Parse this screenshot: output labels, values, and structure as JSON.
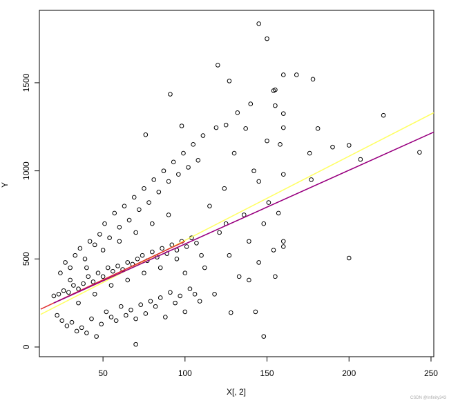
{
  "chart_data": {
    "type": "scatter",
    "xlabel": "X[, 2]",
    "ylabel": "Y",
    "watermark": "CSDN @Infinity343",
    "xlim": [
      11.2,
      251.7
    ],
    "ylim": [
      -55,
      1911
    ],
    "xticks": [
      50,
      100,
      150,
      200,
      250
    ],
    "yticks": [
      0,
      500,
      1000,
      1500
    ],
    "points": {
      "color": "#000000",
      "x": [
        145,
        150,
        120,
        160,
        168,
        178,
        127,
        91,
        155,
        154,
        140,
        155,
        132,
        160,
        221,
        125,
        119,
        137,
        160,
        181,
        76,
        98,
        190,
        200,
        176,
        207,
        243,
        150,
        158,
        177,
        200,
        148,
        70,
        143,
        128,
        160,
        160,
        155,
        139,
        160,
        145,
        125,
        20,
        23,
        26,
        29,
        32,
        35,
        38,
        41,
        44,
        47,
        50,
        53,
        56,
        59,
        62,
        65,
        68,
        71,
        74,
        77,
        80,
        83,
        86,
        89,
        92,
        95,
        98,
        101,
        104,
        107,
        22,
        25,
        28,
        31,
        34,
        37,
        40,
        43,
        46,
        49,
        52,
        55,
        58,
        61,
        64,
        67,
        70,
        73,
        76,
        79,
        82,
        85,
        88,
        91,
        94,
        97,
        100,
        103,
        106,
        109,
        24,
        27,
        30,
        33,
        36,
        39,
        42,
        45,
        48,
        51,
        54,
        57,
        60,
        63,
        66,
        69,
        72,
        75,
        78,
        81,
        84,
        87,
        90,
        93,
        96,
        99,
        102,
        105,
        108,
        111,
        112,
        115,
        118,
        121,
        124,
        127,
        130,
        133,
        136,
        139,
        142,
        145,
        148,
        151,
        154,
        157,
        35,
        45,
        55,
        65,
        75,
        85,
        95,
        60,
        70,
        80,
        90,
        50,
        40,
        30,
        100,
        110
      ],
      "y": [
        1835,
        1750,
        1600,
        1545,
        1545,
        1520,
        1510,
        1435,
        1460,
        1455,
        1380,
        1370,
        1330,
        1325,
        1315,
        1260,
        1245,
        1240,
        1245,
        1240,
        1205,
        1255,
        1135,
        1145,
        1100,
        1065,
        1105,
        1170,
        1150,
        950,
        505,
        60,
        15,
        200,
        195,
        600,
        570,
        400,
        380,
        980,
        940,
        700,
        290,
        300,
        320,
        310,
        350,
        330,
        360,
        400,
        370,
        420,
        400,
        450,
        430,
        460,
        440,
        480,
        470,
        500,
        520,
        490,
        540,
        510,
        560,
        530,
        580,
        550,
        600,
        570,
        620,
        590,
        180,
        150,
        120,
        140,
        90,
        110,
        80,
        160,
        60,
        130,
        200,
        170,
        150,
        230,
        180,
        210,
        160,
        240,
        190,
        260,
        230,
        280,
        170,
        310,
        250,
        290,
        200,
        330,
        300,
        260,
        420,
        480,
        450,
        520,
        560,
        500,
        600,
        580,
        640,
        700,
        620,
        760,
        680,
        800,
        720,
        850,
        780,
        900,
        820,
        950,
        880,
        1000,
        940,
        1050,
        980,
        1100,
        1020,
        1150,
        1060,
        1200,
        450,
        800,
        300,
        650,
        900,
        520,
        1100,
        400,
        750,
        600,
        1000,
        480,
        700,
        820,
        550,
        760,
        250,
        300,
        350,
        380,
        420,
        450,
        500,
        600,
        650,
        700,
        750,
        550,
        450,
        380,
        420,
        520
      ]
    },
    "lines": [
      {
        "color": "#ffff66",
        "x": [
          12,
          251.7
        ],
        "y": [
          185,
          1330
        ]
      },
      {
        "color": "#e03030",
        "x": [
          12,
          100
        ],
        "y": [
          215,
          600
        ]
      },
      {
        "color": "#990080",
        "x": [
          20,
          251.7
        ],
        "y": [
          250,
          1220
        ]
      }
    ]
  }
}
